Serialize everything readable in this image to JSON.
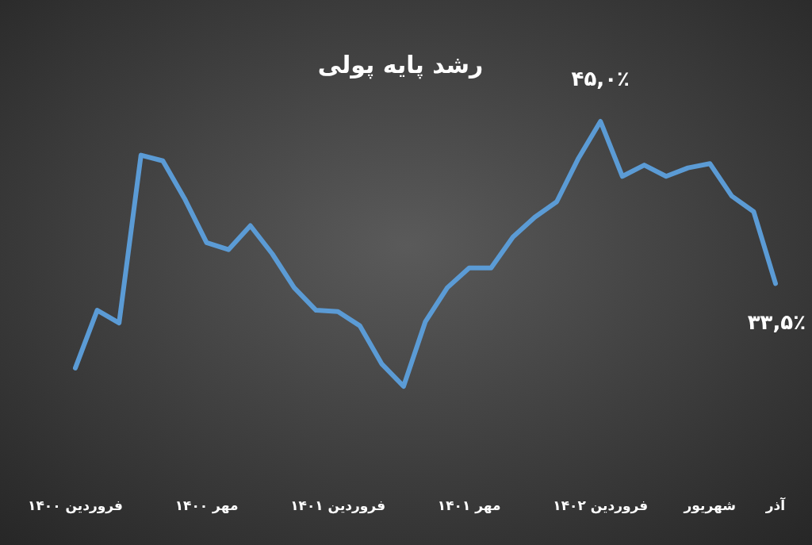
{
  "chart_data": {
    "type": "line",
    "title": "رشد پایه پولی",
    "categories": [
      "فروردین ۱۴۰۰",
      null,
      null,
      null,
      null,
      null,
      "مهر ۱۴۰۰",
      null,
      null,
      null,
      null,
      null,
      "فروردین ۱۴۰۱",
      null,
      null,
      null,
      null,
      null,
      "مهر ۱۴۰۱",
      null,
      null,
      null,
      null,
      null,
      "فروردین ۱۴۰۲",
      null,
      null,
      null,
      null,
      "شهریور",
      null,
      null,
      "آذر"
    ],
    "series": [
      {
        "color": "#5b9bd5",
        "values": [
          27.5,
          31.6,
          30.7,
          42.6,
          42.2,
          39.5,
          36.4,
          35.9,
          37.6,
          35.6,
          33.2,
          31.6,
          31.5,
          30.5,
          27.8,
          26.2,
          30.8,
          33.2,
          34.6,
          34.6,
          36.8,
          38.2,
          39.3,
          42.4,
          45.0,
          41.1,
          41.9,
          41.1,
          41.7,
          42.0,
          39.7,
          38.6,
          33.5
        ],
        "value_labels": [
          null,
          null,
          null,
          null,
          null,
          null,
          null,
          null,
          null,
          null,
          null,
          null,
          null,
          null,
          null,
          null,
          null,
          null,
          null,
          null,
          null,
          null,
          null,
          null,
          "۴۵,۰٪",
          null,
          null,
          null,
          null,
          null,
          null,
          null,
          "۳۳,۵٪"
        ]
      }
    ],
    "grid": false,
    "marker": "none"
  }
}
